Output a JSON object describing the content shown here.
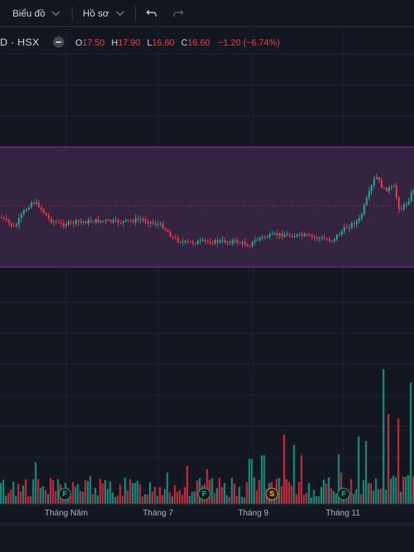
{
  "toolbar": {
    "chart_menu": "Biểu đồ",
    "profile_menu": "Hồ sơ",
    "undo_icon": "undo-icon",
    "redo_icon": "redo-icon"
  },
  "legend": {
    "symbol": "D · HSX",
    "open_label": "O",
    "open": "17.50",
    "high_label": "H",
    "high": "17.90",
    "low_label": "L",
    "low": "16.60",
    "close_label": "C",
    "close": "16.60",
    "change": "−1.20 (−6.74%)"
  },
  "colors": {
    "up": "#22ab94",
    "down": "#f23645",
    "zone_fill": "#3b2447",
    "zone_border": "#9c27b0",
    "background": "#131722"
  },
  "x_axis": [
    "Tháng Năm",
    "Tháng 7",
    "Tháng 9",
    "Tháng 11"
  ],
  "events": [
    {
      "label": "F"
    },
    {
      "label": "F"
    },
    {
      "label": "S"
    },
    {
      "label": "F"
    }
  ]
}
